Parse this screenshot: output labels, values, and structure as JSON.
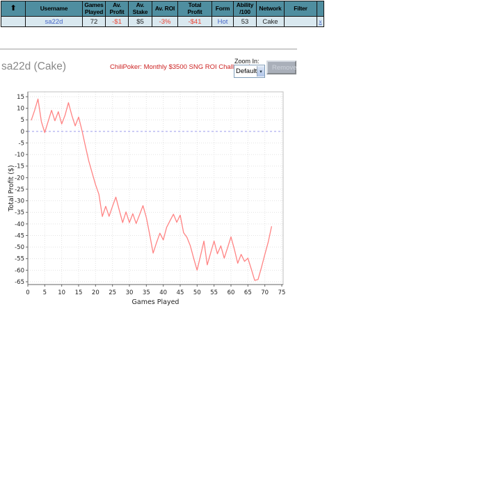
{
  "colors": {
    "header_bg": "#4f8ea0",
    "row_bg": "#d9e8ef",
    "table_border": "#141414",
    "link": "#4565c8",
    "negative": "#ee4433",
    "title": "#888888",
    "promo": "#cc2222",
    "divider": "#a0a0a0",
    "button_bg": "#a9afb9",
    "button_text": "#ced3db"
  },
  "results_table": {
    "sort_icon": "up-arrow-icon",
    "columns": [
      {
        "key": "sort",
        "label": ""
      },
      {
        "key": "username",
        "label": "Username"
      },
      {
        "key": "games-played",
        "label": "Games\nPlayed"
      },
      {
        "key": "av-profit",
        "label": "Av.\nProfit"
      },
      {
        "key": "av-stake",
        "label": "Av.\nStake"
      },
      {
        "key": "av-roi",
        "label": "Av. ROI"
      },
      {
        "key": "total-profit",
        "label": "Total\nProfit"
      },
      {
        "key": "form",
        "label": "Form"
      },
      {
        "key": "ability",
        "label": "Ability\n/100"
      },
      {
        "key": "network",
        "label": "Network"
      },
      {
        "key": "filter",
        "label": "Filter"
      },
      {
        "key": "remove",
        "label": ""
      }
    ],
    "row": [
      {
        "key": "sort",
        "text": "",
        "kind": "plain"
      },
      {
        "key": "username",
        "text": "sa22d",
        "kind": "link"
      },
      {
        "key": "games-played",
        "text": "72",
        "kind": "plain"
      },
      {
        "key": "av-profit",
        "text": "-$1",
        "kind": "negative"
      },
      {
        "key": "av-stake",
        "text": "$5",
        "kind": "plain"
      },
      {
        "key": "av-roi",
        "text": "-3%",
        "kind": "negative"
      },
      {
        "key": "total-profit",
        "text": "-$41",
        "kind": "negative"
      },
      {
        "key": "form",
        "text": "Hot",
        "kind": "link"
      },
      {
        "key": "ability",
        "text": "53",
        "kind": "plain"
      },
      {
        "key": "network",
        "text": "Cake",
        "kind": "plain"
      },
      {
        "key": "filter",
        "text": "",
        "kind": "plain"
      },
      {
        "key": "remove",
        "text": "x",
        "kind": "link"
      }
    ]
  },
  "player_header": {
    "title": "sa22d (Cake)",
    "promo": "ChiliPoker: Monthly $3500 SNG ROI Challenge!",
    "zoom_label": "Zoom In:",
    "zoom_value": "Default",
    "select_arrow_icon": "chevron-down-icon",
    "remove_button": "Remove"
  },
  "chart_data": {
    "type": "line",
    "title": "",
    "xlabel": "Games Played",
    "ylabel": "Total Profit ($)",
    "xlim": [
      0,
      75
    ],
    "ylim": [
      -65,
      15
    ],
    "x_ticks": [
      0,
      5,
      10,
      15,
      20,
      25,
      30,
      35,
      40,
      45,
      50,
      55,
      60,
      65,
      70,
      75
    ],
    "y_ticks": [
      15,
      10,
      5,
      0,
      -5,
      -10,
      -15,
      -20,
      -25,
      -30,
      -35,
      -40,
      -45,
      -50,
      -55,
      -60,
      -65
    ],
    "grid": true,
    "zero_line": 0,
    "legend": "none",
    "x_start": 1,
    "x_step": 1,
    "series": [
      {
        "name": "sa22d (Cake) cumulative profit ($)",
        "values": [
          4.8,
          9,
          14,
          4.2,
          -0.5,
          4.3,
          9.1,
          4.6,
          8.5,
          3.2,
          7,
          12.4,
          6.9,
          2.4,
          6.2,
          0.3,
          -6.3,
          -12.8,
          -18,
          -23,
          -27.2,
          -36.8,
          -32.4,
          -36.7,
          -32.4,
          -28.4,
          -34,
          -39.4,
          -34.8,
          -39.4,
          -35.6,
          -39.8,
          -36,
          -32.1,
          -37.2,
          -44.6,
          -52.6,
          -48.2,
          -44,
          -46.9,
          -41.5,
          -38.6,
          -35.8,
          -39.3,
          -36.2,
          -43.8,
          -45.8,
          -49.5,
          -55,
          -60,
          -53.8,
          -47.4,
          -57.7,
          -52.5,
          -47.4,
          -52.9,
          -49.5,
          -54.8,
          -50.3,
          -45.6,
          -51,
          -57,
          -53.2,
          -56.2,
          -54.8,
          -59.5,
          -64.4,
          -64,
          -58.8,
          -53.2,
          -47.9,
          -41
        ]
      }
    ],
    "colors": {
      "line": "#ff8383",
      "zero_line": "#9b9bee",
      "grid": "#e2e2e2",
      "axis": "#666666",
      "border": "#c0c0c0",
      "tick_text": "#222222"
    }
  }
}
